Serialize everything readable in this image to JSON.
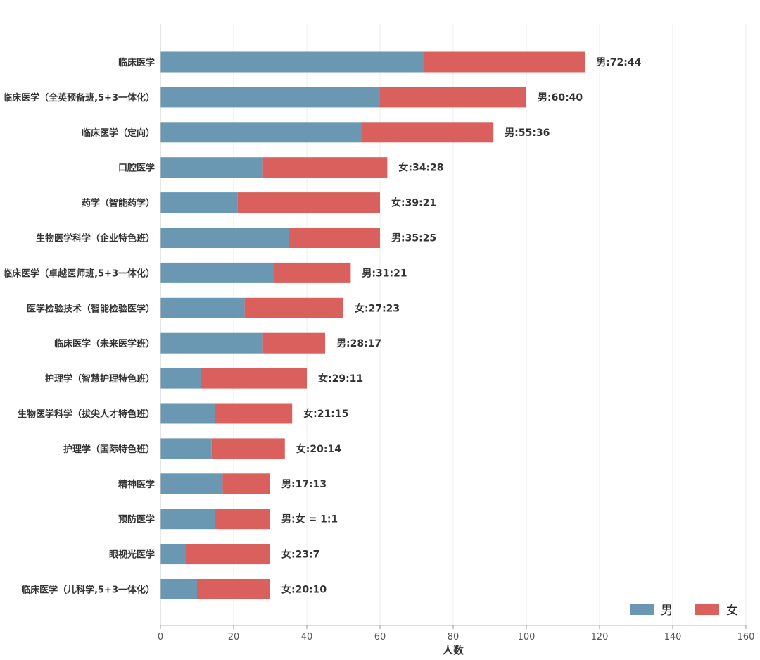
{
  "chart_data": {
    "type": "bar",
    "orientation": "horizontal",
    "stacked": true,
    "title": "",
    "xlabel": "人数",
    "ylabel": "",
    "xlim": [
      0,
      160
    ],
    "xticks": [
      0,
      20,
      40,
      60,
      80,
      100,
      120,
      140,
      160
    ],
    "grid": true,
    "legend_position": "bottom-right",
    "categories": [
      "临床医学",
      "临床医学（全英预备班,5+3一体化）",
      "临床医学（定向）",
      "口腔医学",
      "药学（智能药学）",
      "生物医学科学（企业特色班）",
      "临床医学（卓越医师班,5+3一体化）",
      "医学检验技术（智能检验医学）",
      "临床医学（未来医学班）",
      "护理学（智慧护理特色班）",
      "生物医学科学（拔尖人才特色班）",
      "护理学（国际特色班）",
      "精神医学",
      "预防医学",
      "眼视光医学",
      "临床医学（儿科学,5+3一体化）"
    ],
    "series": [
      {
        "name": "男",
        "color": "#6a98b3",
        "values": [
          72,
          60,
          55,
          28,
          21,
          35,
          31,
          23,
          28,
          11,
          15,
          14,
          17,
          15,
          7,
          10
        ]
      },
      {
        "name": "女",
        "color": "#d9605d",
        "values": [
          44,
          40,
          36,
          34,
          39,
          25,
          21,
          27,
          17,
          29,
          21,
          20,
          13,
          15,
          23,
          20
        ]
      }
    ],
    "bar_labels": [
      "男:72:44",
      "男:60:40",
      "男:55:36",
      "女:34:28",
      "女:39:21",
      "男:35:25",
      "男:31:21",
      "女:27:23",
      "男:28:17",
      "女:29:11",
      "女:21:15",
      "女:20:14",
      "男:17:13",
      "男:女 = 1:1",
      "女:23:7",
      "女:20:10"
    ]
  }
}
